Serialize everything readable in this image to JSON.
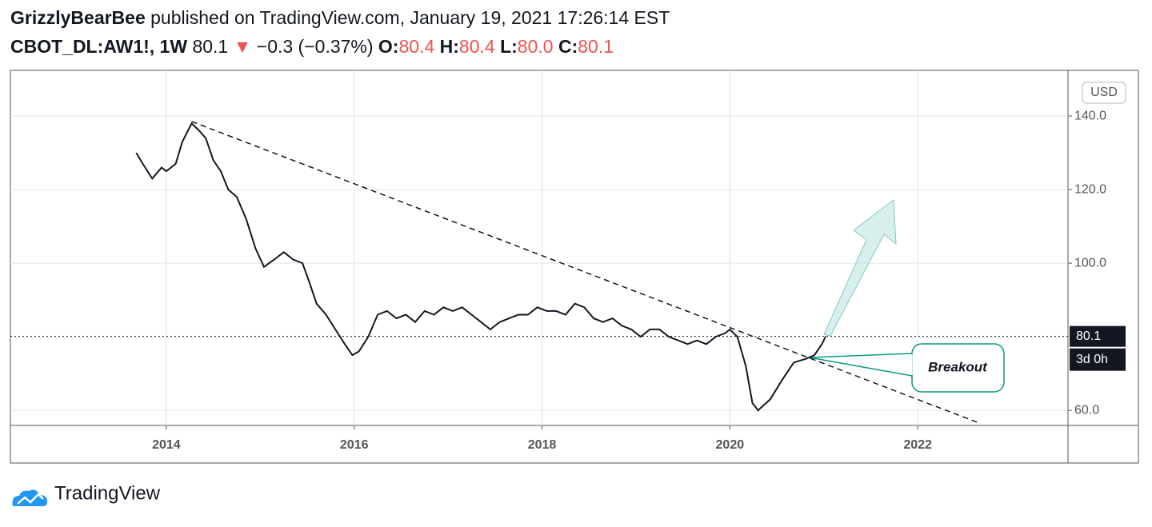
{
  "header": {
    "author": "GrizzlyBearBee",
    "published": "published on TradingView.com, January 19, 2021 17:26:14 EST",
    "symbol": "CBOT_DL:AW1!, 1W",
    "last": "80.1",
    "arrow": "▼",
    "change": "−0.3 (−0.37%)",
    "open_label": "O:",
    "open": "80.4",
    "high_label": "H:",
    "high": "80.4",
    "low_label": "L:",
    "low": "80.0",
    "close_label": "C:",
    "close": "80.1"
  },
  "chart_data": {
    "type": "line",
    "currency": "USD",
    "price_label": "80.1",
    "countdown": "3d 0h",
    "annotation": "Breakout",
    "color": "#131722",
    "x": [
      2013.68,
      2013.75,
      2013.85,
      2013.95,
      2014.0,
      2014.1,
      2014.17,
      2014.27,
      2014.35,
      2014.42,
      2014.5,
      2014.58,
      2014.66,
      2014.75,
      2014.85,
      2014.95,
      2015.04,
      2015.15,
      2015.25,
      2015.35,
      2015.45,
      2015.52,
      2015.6,
      2015.7,
      2015.8,
      2015.9,
      2015.98,
      2016.05,
      2016.15,
      2016.25,
      2016.35,
      2016.45,
      2016.55,
      2016.65,
      2016.75,
      2016.85,
      2016.95,
      2017.05,
      2017.15,
      2017.25,
      2017.35,
      2017.45,
      2017.55,
      2017.65,
      2017.75,
      2017.85,
      2017.95,
      2018.05,
      2018.15,
      2018.25,
      2018.35,
      2018.45,
      2018.55,
      2018.65,
      2018.75,
      2018.85,
      2018.95,
      2019.05,
      2019.15,
      2019.25,
      2019.35,
      2019.45,
      2019.55,
      2019.65,
      2019.75,
      2019.85,
      2019.95,
      2020.0,
      2020.08,
      2020.17,
      2020.24,
      2020.3,
      2020.43,
      2020.55,
      2020.68,
      2020.81,
      2020.9,
      2020.98,
      2021.02
    ],
    "values": [
      130,
      127,
      123,
      126,
      125,
      127,
      133,
      138,
      136,
      134,
      128,
      125,
      120,
      118,
      112,
      104,
      99,
      101,
      103,
      101,
      100,
      95,
      89,
      86,
      82,
      78,
      75,
      76,
      80,
      86,
      87,
      85,
      86,
      84,
      87,
      86,
      88,
      87,
      88,
      86,
      84,
      82,
      84,
      85,
      86,
      86,
      88,
      87,
      87,
      86,
      89,
      88,
      85,
      84,
      85,
      83,
      82,
      80,
      82,
      82,
      80,
      79,
      78,
      79,
      78,
      80,
      81,
      82,
      80,
      72,
      62,
      60,
      63,
      68,
      73,
      74,
      75,
      78,
      80.1
    ],
    "trendline": {
      "x": [
        2014.27,
        2022.64
      ],
      "y": [
        138.5,
        56.7
      ]
    },
    "xlim": [
      2012.34,
      2023.6
    ],
    "xticks": [
      2014,
      2016,
      2018,
      2020,
      2022
    ],
    "ylim": [
      55.9,
      152.4
    ],
    "yticks": [
      {
        "value": 60,
        "label": "60.0"
      },
      {
        "value": 100,
        "label": "100.0"
      },
      {
        "value": 120,
        "label": "120.0"
      },
      {
        "value": 140,
        "label": "140.0"
      }
    ],
    "grid": true
  },
  "footer": {
    "brand": "TradingView"
  }
}
